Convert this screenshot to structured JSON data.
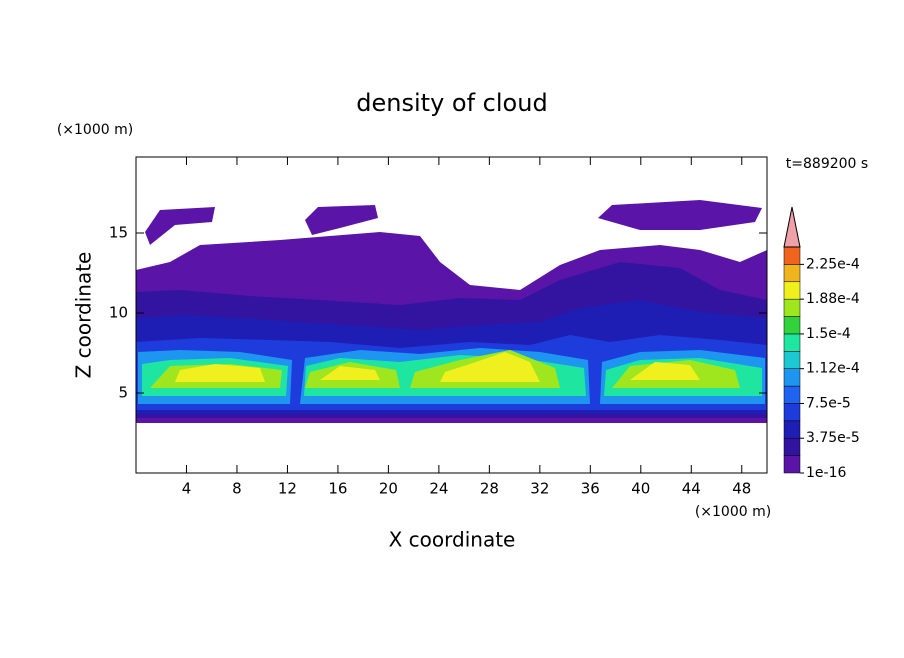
{
  "chart_data": {
    "type": "contour",
    "title": "density of cloud",
    "x_label": "X coordinate",
    "y_label": "Z coordinate",
    "x_unit": "(×1000 m)",
    "y_unit": "(×1000 m)",
    "annotation": "t=889200 s",
    "xlim": [
      0,
      50
    ],
    "xticks": [
      4,
      8,
      12,
      16,
      20,
      24,
      28,
      32,
      36,
      40,
      44,
      48
    ],
    "ylim": [
      0,
      19.75
    ],
    "yticks": [
      5,
      10,
      15
    ],
    "colorbar": {
      "ticks": [
        1e-16,
        {
          "value": 3.75e-05,
          "label": "3.75e-5"
        },
        {
          "value": 7.5e-05,
          "label": "7.5e-5"
        },
        {
          "value": 0.000112,
          "label": "1.12e-4"
        },
        {
          "value": 0.00015,
          "label": "1.5e-4"
        },
        {
          "value": 0.000188,
          "label": "1.88e-4"
        },
        {
          "value": 0.000225,
          "label": "2.25e-4"
        }
      ],
      "colors": [
        "#5a14a8",
        "#3214a0",
        "#1e1eb4",
        "#1e3cdc",
        "#1e64f0",
        "#1e96f0",
        "#1ec8d2",
        "#1ee6a0",
        "#32d23c",
        "#a0e61e",
        "#f0f01e",
        "#f0b41e",
        "#f0641e"
      ],
      "extend_color": "#f0a0a8"
    }
  }
}
